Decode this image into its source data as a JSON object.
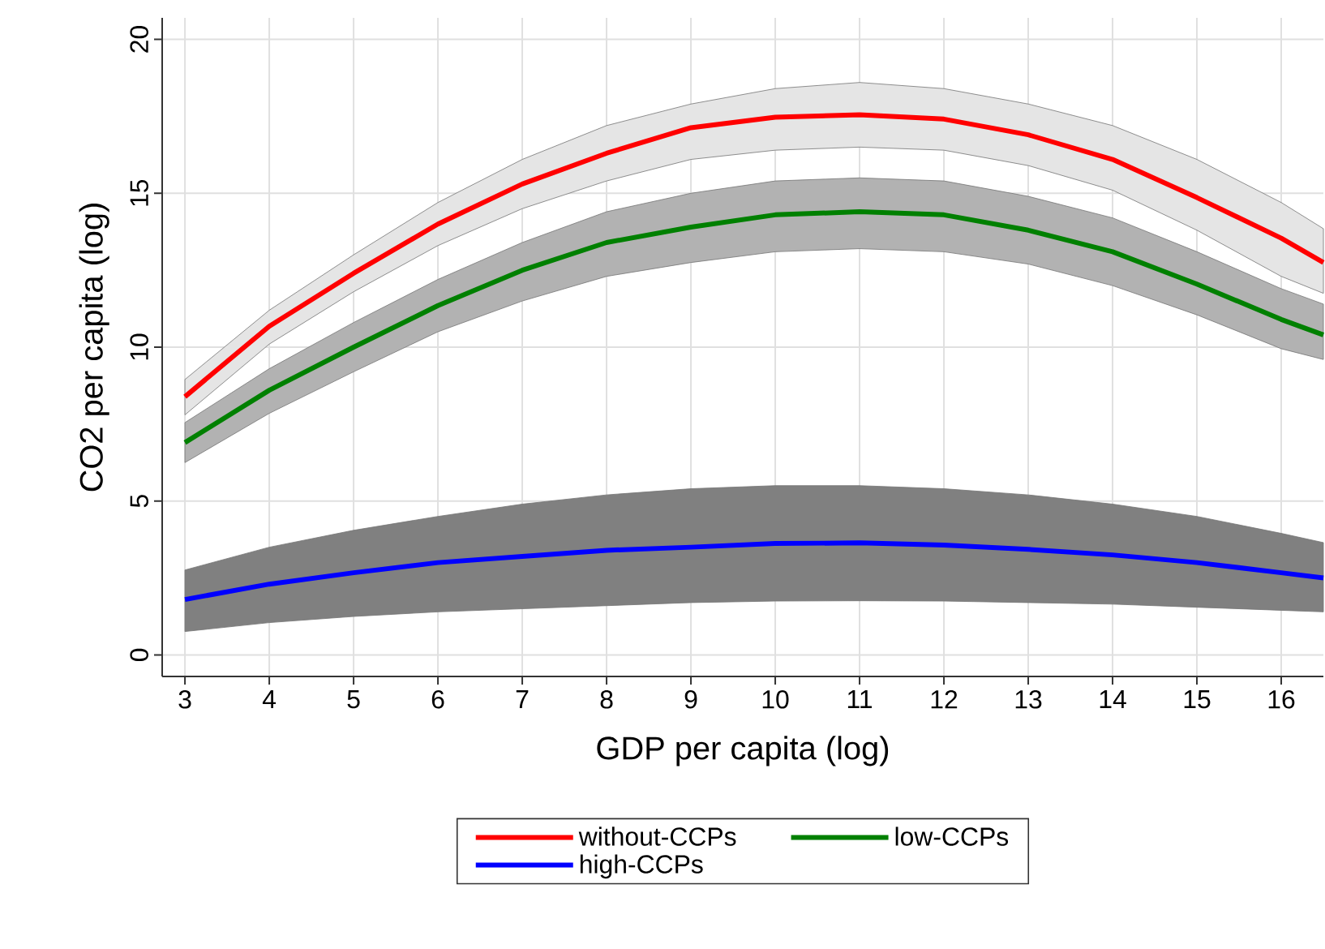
{
  "chart_data": {
    "type": "line",
    "xlabel": "GDP per capita (log)",
    "ylabel": "CO2 per capita (log)",
    "x": [
      3,
      4,
      5,
      6,
      7,
      8,
      9,
      10,
      11,
      12,
      13,
      14,
      15,
      16,
      16.5
    ],
    "series": [
      {
        "name": "without-CCPs",
        "color": "#ff0000",
        "values": [
          8.39,
          10.68,
          12.4,
          14.0,
          15.3,
          16.3,
          17.13,
          17.47,
          17.55,
          17.41,
          16.9,
          16.1,
          14.86,
          13.54,
          12.75
        ],
        "lower": [
          7.8,
          10.1,
          11.8,
          13.3,
          14.5,
          15.4,
          16.1,
          16.4,
          16.5,
          16.4,
          15.9,
          15.1,
          13.8,
          12.3,
          11.75
        ],
        "upper": [
          8.95,
          11.2,
          13.0,
          14.7,
          16.1,
          17.2,
          17.9,
          18.4,
          18.6,
          18.4,
          17.9,
          17.2,
          16.1,
          14.7,
          13.85
        ]
      },
      {
        "name": "low-CCPs",
        "color": "#008000",
        "values": [
          6.9,
          8.6,
          10.0,
          11.35,
          12.5,
          13.4,
          13.9,
          14.3,
          14.4,
          14.3,
          13.8,
          13.1,
          12.05,
          10.9,
          10.4
        ],
        "lower": [
          6.25,
          7.85,
          9.2,
          10.5,
          11.5,
          12.3,
          12.75,
          13.1,
          13.2,
          13.1,
          12.7,
          12.0,
          11.05,
          9.95,
          9.6
        ],
        "upper": [
          7.55,
          9.3,
          10.8,
          12.2,
          13.4,
          14.4,
          15.0,
          15.4,
          15.5,
          15.4,
          14.9,
          14.2,
          13.1,
          11.9,
          11.4
        ]
      },
      {
        "name": "high-CCPs",
        "color": "#0000ff",
        "values": [
          1.8,
          2.3,
          2.67,
          3.0,
          3.2,
          3.4,
          3.5,
          3.62,
          3.64,
          3.57,
          3.43,
          3.25,
          3.0,
          2.67,
          2.5
        ],
        "lower": [
          0.76,
          1.05,
          1.25,
          1.4,
          1.5,
          1.6,
          1.7,
          1.75,
          1.76,
          1.75,
          1.7,
          1.65,
          1.55,
          1.45,
          1.4
        ],
        "upper": [
          2.76,
          3.5,
          4.05,
          4.5,
          4.9,
          5.2,
          5.4,
          5.5,
          5.5,
          5.4,
          5.2,
          4.9,
          4.5,
          3.95,
          3.65
        ]
      }
    ],
    "xlim": [
      2.73,
      16.5
    ],
    "ylim": [
      -0.7,
      20.7
    ],
    "xticks": [
      3,
      4,
      5,
      6,
      7,
      8,
      9,
      10,
      11,
      12,
      13,
      14,
      15,
      16
    ],
    "yticks": [
      0,
      5,
      10,
      15,
      20
    ],
    "grid": true,
    "legend": "bottom",
    "line_style": "solid",
    "marker": "none"
  }
}
